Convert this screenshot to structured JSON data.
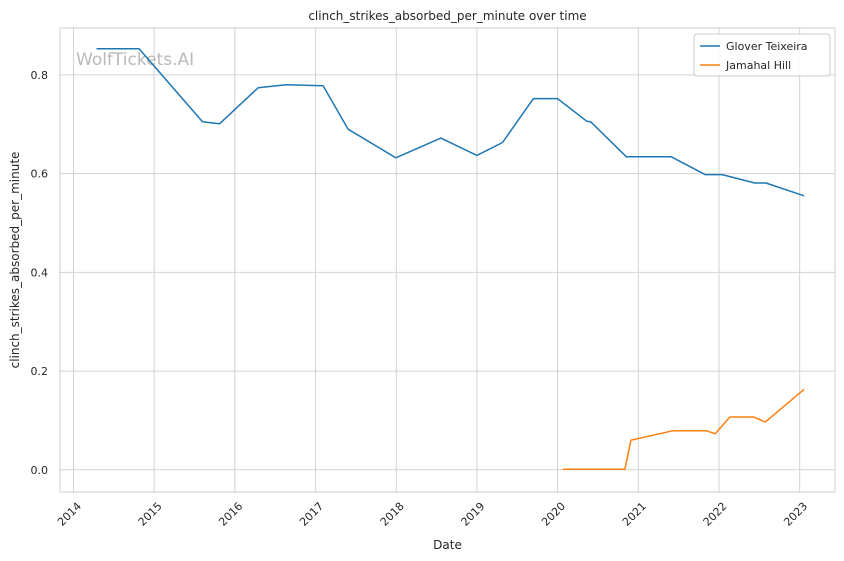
{
  "chart_data": {
    "type": "line",
    "title": "clinch_strikes_absorbed_per_minute over time",
    "xlabel": "Date",
    "ylabel": "clinch_strikes_absorbed_per_minute",
    "watermark": "WolfTickets.AI",
    "x_type": "date",
    "xlim": [
      "2013-11-01",
      "2023-06-10"
    ],
    "ylim": [
      -0.045,
      0.895
    ],
    "x_ticks": [
      "2014",
      "2015",
      "2016",
      "2017",
      "2018",
      "2019",
      "2020",
      "2021",
      "2022",
      "2023"
    ],
    "x_tick_dates": [
      "2014-01-01",
      "2015-01-01",
      "2016-01-01",
      "2017-01-01",
      "2018-01-01",
      "2019-01-01",
      "2020-01-01",
      "2021-01-01",
      "2022-01-01",
      "2023-01-01"
    ],
    "y_ticks": [
      0.0,
      0.2,
      0.4,
      0.6,
      0.8
    ],
    "y_tick_labels": [
      "0.0",
      "0.2",
      "0.4",
      "0.6",
      "0.8"
    ],
    "grid": true,
    "legend_position": "top-right",
    "series": [
      {
        "name": "Glover Teixeira",
        "color": "#1f77b4",
        "points": [
          [
            "2014-04-15",
            0.853
          ],
          [
            "2014-10-25",
            0.853
          ],
          [
            "2015-08-08",
            0.705
          ],
          [
            "2015-10-24",
            0.701
          ],
          [
            "2016-04-16",
            0.774
          ],
          [
            "2016-08-20",
            0.78
          ],
          [
            "2017-02-04",
            0.778
          ],
          [
            "2017-05-28",
            0.69
          ],
          [
            "2017-12-30",
            0.632
          ],
          [
            "2018-07-22",
            0.672
          ],
          [
            "2019-01-01",
            0.637
          ],
          [
            "2019-04-27",
            0.663
          ],
          [
            "2019-09-14",
            0.752
          ],
          [
            "2020-01-01",
            0.752
          ],
          [
            "2020-05-13",
            0.706
          ],
          [
            "2020-05-30",
            0.705
          ],
          [
            "2020-11-08",
            0.634
          ],
          [
            "2021-05-30",
            0.634
          ],
          [
            "2021-10-30",
            0.598
          ],
          [
            "2022-01-15",
            0.598
          ],
          [
            "2022-06-12",
            0.581
          ],
          [
            "2022-08-01",
            0.581
          ],
          [
            "2023-01-21",
            0.555
          ]
        ]
      },
      {
        "name": "Jamahal Hill",
        "color": "#ff7f0e",
        "points": [
          [
            "2020-01-25",
            0.001
          ],
          [
            "2020-11-01",
            0.001
          ],
          [
            "2020-11-28",
            0.06
          ],
          [
            "2021-06-05",
            0.079
          ],
          [
            "2021-11-06",
            0.079
          ],
          [
            "2021-12-15",
            0.073
          ],
          [
            "2022-02-19",
            0.107
          ],
          [
            "2022-06-05",
            0.107
          ],
          [
            "2022-07-30",
            0.097
          ],
          [
            "2023-01-21",
            0.163
          ]
        ]
      }
    ]
  }
}
